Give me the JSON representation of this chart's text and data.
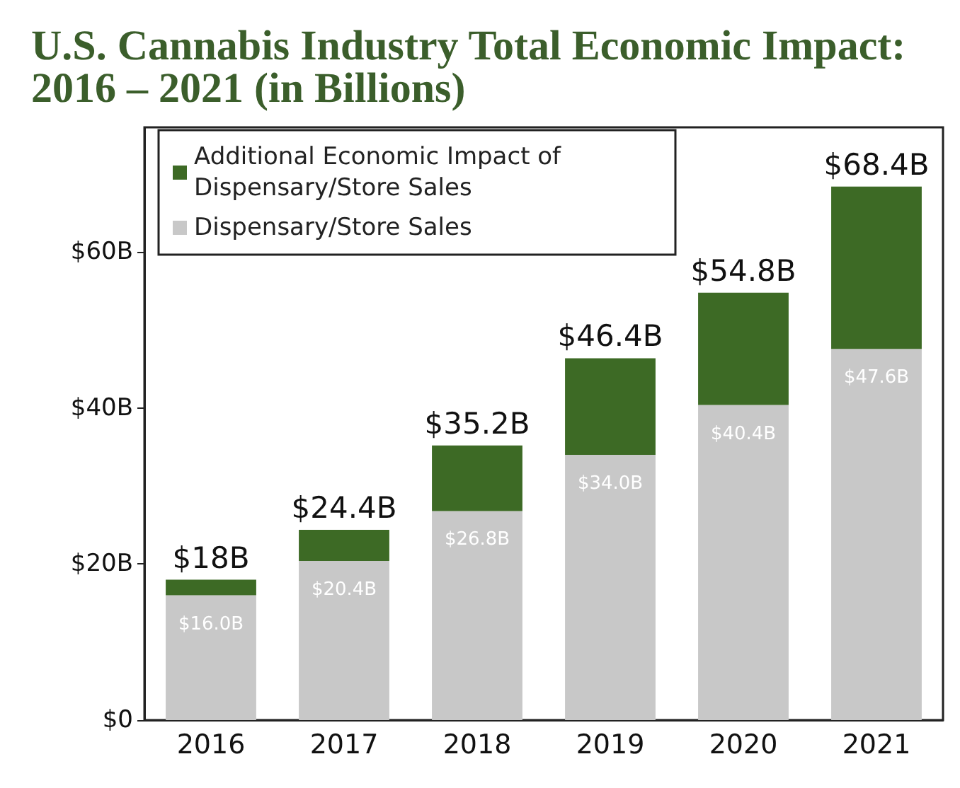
{
  "chart_data": {
    "type": "bar",
    "title": "U.S. Cannabis Industry Total Economic Impact: 2016 – 2021 (in Billions)",
    "categories": [
      "2016",
      "2017",
      "2018",
      "2019",
      "2020",
      "2021"
    ],
    "stacked": true,
    "series": [
      {
        "name": "Dispensary/Store Sales",
        "color": "#c8c8c8",
        "values": [
          16.0,
          20.4,
          26.8,
          34.0,
          40.4,
          47.6
        ],
        "value_labels": [
          "$16.0B",
          "$20.4B",
          "$26.8B",
          "$34.0B",
          "$40.4B",
          "$47.6B"
        ]
      },
      {
        "name": "Additional Economic Impact of Dispensary/Store Sales",
        "color": "#3d6a25",
        "values": [
          2.0,
          4.0,
          8.4,
          12.4,
          14.4,
          20.8
        ]
      }
    ],
    "totals": [
      "$18B",
      "$24.4B",
      "$35.2B",
      "$46.4B",
      "$54.8B",
      "$68.4B"
    ],
    "ylim": [
      0,
      76
    ],
    "yticks": [
      {
        "value": 0,
        "label": "$0"
      },
      {
        "value": 20,
        "label": "$20B"
      },
      {
        "value": 40,
        "label": "$40B"
      },
      {
        "value": 60,
        "label": "$60B"
      }
    ],
    "grid": false,
    "legend": "top left"
  }
}
